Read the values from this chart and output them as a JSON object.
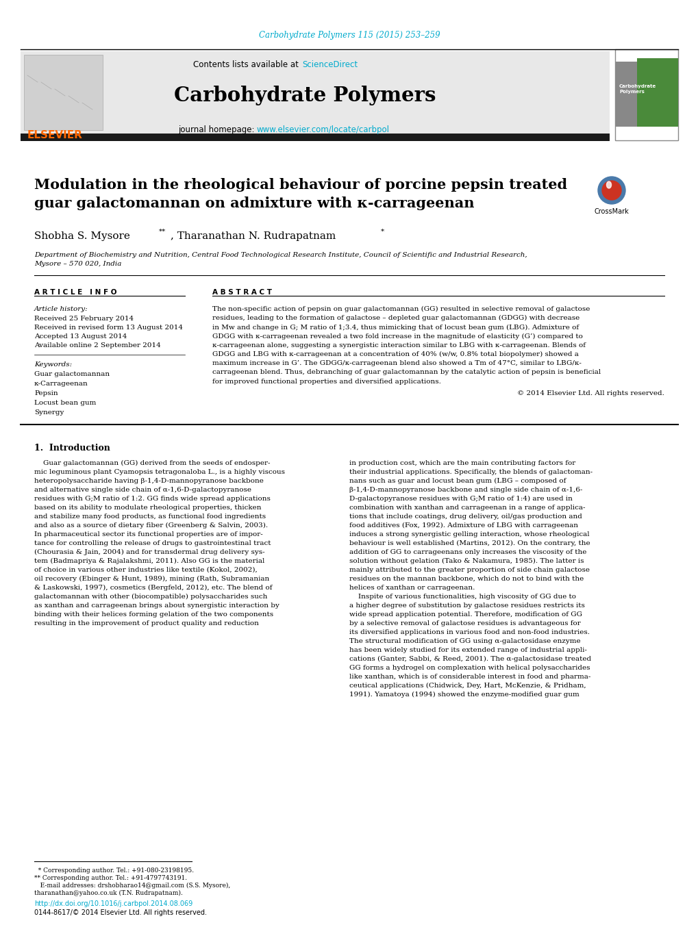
{
  "journal_ref": "Carbohydrate Polymers 115 (2015) 253–259",
  "journal_ref_color": "#00aacc",
  "journal_name": "Carbohydrate Polymers",
  "journal_url": "www.elsevier.com/locate/carbpol",
  "sciencedirect_text": "Contents lists available at ",
  "sciencedirect_link": "ScienceDirect",
  "sciencedirect_color": "#00aacc",
  "elsevier_color": "#ff6600",
  "title": "Modulation in the rheological behaviour of porcine pepsin treated\nguar galactomannan on admixture with κ-carrageenan",
  "authors_part1": "Shobha S. Mysore",
  "authors_sup1": "**",
  "authors_part2": ", Tharanathan N. Rudrapatnam",
  "authors_sup2": "*",
  "affiliation": "Department of Biochemistry and Nutrition, Central Food Technological Research Institute, Council of Scientific and Industrial Research,\nMysore – 570 020, India",
  "article_info_header": "A R T I C L E   I N F O",
  "abstract_header": "A B S T R A C T",
  "article_history_label": "Article history:",
  "received_1": "Received 25 February 2014",
  "received_2": "Received in revised form 13 August 2014",
  "accepted": "Accepted 13 August 2014",
  "available": "Available online 2 September 2014",
  "keywords_label": "Keywords:",
  "keywords": [
    "Guar galactomannan",
    "κ-Carrageenan",
    "Pepsin",
    "Locust bean gum",
    "Synergy"
  ],
  "abstract_text": "The non-specific action of pepsin on guar galactomannan (GG) resulted in selective removal of galactose\nresidues, leading to the formation of galactose – depleted guar galactomannan (GDGG) with decrease\nin Mw and change in G; M ratio of 1;3.4, thus mimicking that of locust bean gum (LBG). Admixture of\nGDGG with κ-carrageenan revealed a two fold increase in the magnitude of elasticity (G’) compared to\nκ-carrageenan alone, suggesting a synergistic interaction similar to LBG with κ-carrageenan. Blends of\nGDGG and LBG with κ-carrageenan at a concentration of 40% (w/w, 0.8% total biopolymer) showed a\nmaximum increase in G’. The GDGG/κ-carrageenan blend also showed a Tm of 47°C, similar to LBG/κ-\ncarrageenan blend. Thus, debranching of guar galactomannan by the catalytic action of pepsin is beneficial\nfor improved functional properties and diversified applications.",
  "copyright": "© 2014 Elsevier Ltd. All rights reserved.",
  "section1_title": "1.  Introduction",
  "intro_col1": "    Guar galactomannan (GG) derived from the seeds of endosper-\nmic leguminous plant Cyamopsis tetragonaloba L., is a highly viscous\nheteropolysaccharide having β-1,4-D-mannopyranose backbone\nand alternative single side chain of α-1,6-D-galactopyranose\nresidues with G;M ratio of 1:2. GG finds wide spread applications\nbased on its ability to modulate rheological properties, thicken\nand stabilize many food products, as functional food ingredients\nand also as a source of dietary fiber (Greenberg & Salvin, 2003).\nIn pharmaceutical sector its functional properties are of impor-\ntance for controlling the release of drugs to gastrointestinal tract\n(Chourasia & Jain, 2004) and for transdermal drug delivery sys-\ntem (Badmapriya & Rajalakshmi, 2011). Also GG is the material\nof choice in various other industries like textile (Kokol, 2002),\noil recovery (Ebinger & Hunt, 1989), mining (Rath, Subramanian\n& Laskowski, 1997), cosmetics (Bergfeld, 2012), etc. The blend of\ngalactomannan with other (biocompatible) polysaccharides such\nas xanthan and carrageenan brings about synergistic interaction by\nbinding with their helices forming gelation of the two components\nresulting in the improvement of product quality and reduction",
  "intro_col2": "in production cost, which are the main contributing factors for\ntheir industrial applications. Specifically, the blends of galactoman-\nnans such as guar and locust bean gum (LBG – composed of\nβ-1,4-D-mannopyranose backbone and single side chain of α-1,6-\nD-galactopyranose residues with G;M ratio of 1:4) are used in\ncombination with xanthan and carrageenan in a range of applica-\ntions that include coatings, drug delivery, oil/gas production and\nfood additives (Fox, 1992). Admixture of LBG with carrageenan\ninduces a strong synergistic gelling interaction, whose rheological\nbehaviour is well established (Martins, 2012). On the contrary, the\naddition of GG to carrageenans only increases the viscosity of the\nsolution without gelation (Tako & Nakamura, 1985). The latter is\nmainly attributed to the greater proportion of side chain galactose\nresidues on the mannan backbone, which do not to bind with the\nhelices of xanthan or carrageenan.\n    Inspite of various functionalities, high viscosity of GG due to\na higher degree of substitution by galactose residues restricts its\nwide spread application potential. Therefore, modification of GG\nby a selective removal of galactose residues is advantageous for\nits diversified applications in various food and non-food industries.\nThe structural modification of GG using α-galactosidase enzyme\nhas been widely studied for its extended range of industrial appli-\ncations (Ganter, Sabbi, & Reed, 2001). The α-galactosidase treated\nGG forms a hydrogel on complexation with helical polysaccharides\nlike xanthan, which is of considerable interest in food and pharma-\nceutical applications (Chidwick, Dey, Hart, McKenzie, & Pridham,\n1991). Yamatoya (1994) showed the enzyme-modified guar gum",
  "footnote_text_1": "  * Corresponding author. Tel.: +91-080-23198195.",
  "footnote_text_2": "** Corresponding author. Tel.: +91-4797743191.",
  "footnote_text_3": "   E-mail addresses: drshobharao14@gmail.com (S.S. Mysore),",
  "footnote_text_4": "tharanathan@yahoo.co.uk (T.N. Rudrapatnam).",
  "doi_text": "http://dx.doi.org/10.1016/j.carbpol.2014.08.069",
  "issn_text": "0144-8617/© 2014 Elsevier Ltd. All rights reserved.",
  "bg_color": "#ffffff",
  "header_bg": "#e8e8e8",
  "dark_bar_color": "#1a1a1a",
  "link_color": "#00aacc"
}
